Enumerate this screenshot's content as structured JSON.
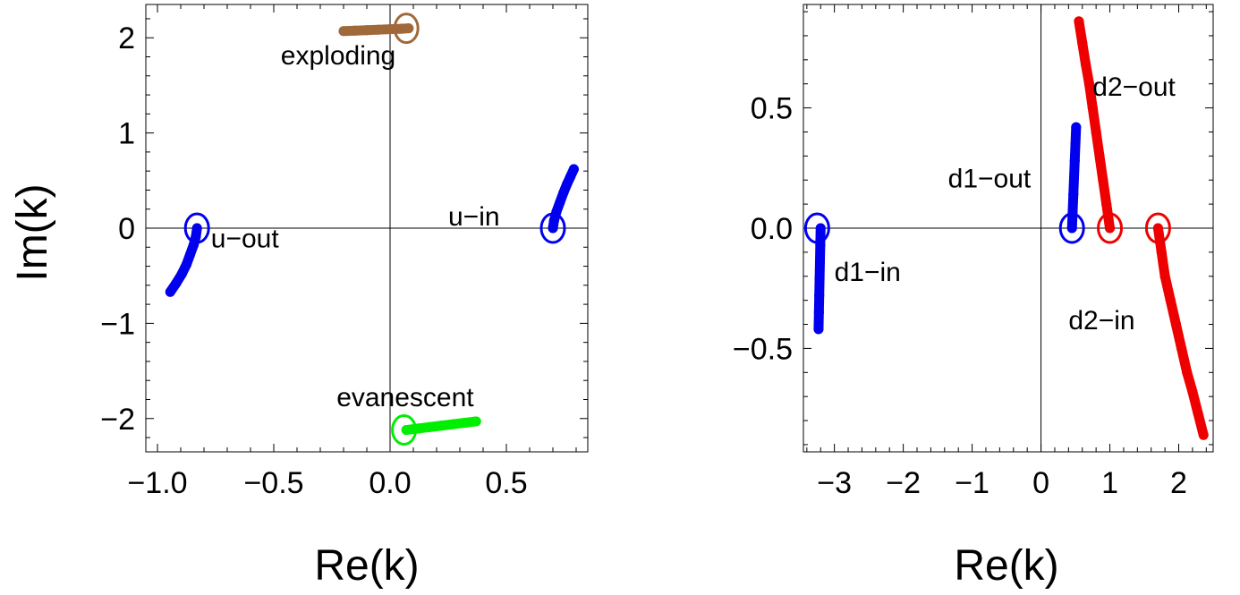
{
  "chart_data": [
    {
      "type": "scatter",
      "xlabel": "Re(k)",
      "ylabel": "Im(k)",
      "xlim": [
        -1.05,
        0.85
      ],
      "ylim": [
        -2.35,
        2.35
      ],
      "xticks": [
        -1.0,
        -0.5,
        0.0,
        0.5
      ],
      "xtick_labels": [
        "−1.0",
        "−0.5",
        "0.0",
        "0.5"
      ],
      "yticks": [
        -2,
        -1,
        0,
        1,
        2
      ],
      "ytick_labels": [
        "−2",
        "−1",
        "0",
        "1",
        "2"
      ],
      "grid": false,
      "series": [
        {
          "name": "exploding",
          "color": "#a0693a",
          "marker": {
            "x": 0.07,
            "y": 2.1
          },
          "x": [
            -0.2,
            -0.15,
            -0.1,
            -0.05,
            0.0,
            0.05,
            0.08
          ],
          "y": [
            2.07,
            2.075,
            2.08,
            2.085,
            2.09,
            2.095,
            2.1
          ]
        },
        {
          "name": "u−in",
          "color": "#0000ee",
          "marker": {
            "x": 0.7,
            "y": 0.0
          },
          "x": [
            0.7,
            0.705,
            0.715,
            0.73,
            0.745,
            0.76,
            0.775,
            0.79
          ],
          "y": [
            0.0,
            0.08,
            0.17,
            0.27,
            0.37,
            0.46,
            0.54,
            0.62
          ]
        },
        {
          "name": "u−out",
          "color": "#0000ee",
          "marker": {
            "x": -0.83,
            "y": 0.0
          },
          "x": [
            -0.83,
            -0.835,
            -0.845,
            -0.86,
            -0.875,
            -0.895,
            -0.92,
            -0.945
          ],
          "y": [
            0.0,
            -0.09,
            -0.18,
            -0.28,
            -0.38,
            -0.48,
            -0.58,
            -0.67
          ]
        },
        {
          "name": "evanescent",
          "color": "#00ee00",
          "marker": {
            "x": 0.06,
            "y": -2.12
          },
          "x": [
            0.07,
            0.12,
            0.17,
            0.22,
            0.27,
            0.32,
            0.37
          ],
          "y": [
            -2.12,
            -2.105,
            -2.09,
            -2.075,
            -2.06,
            -2.045,
            -2.03
          ]
        }
      ],
      "annotations": [
        {
          "text": "exploding",
          "x": -0.47,
          "y": 1.72
        },
        {
          "text": "u−in",
          "x": 0.25,
          "y": 0.03
        },
        {
          "text": "u−out",
          "x": -0.77,
          "y": -0.2
        },
        {
          "text": "evanescent",
          "x": -0.23,
          "y": -1.87
        }
      ]
    },
    {
      "type": "scatter",
      "xlabel": "Re(k)",
      "ylabel": "",
      "xlim": [
        -3.45,
        2.5
      ],
      "ylim": [
        -0.93,
        0.93
      ],
      "xticks": [
        -3,
        -2,
        -1,
        0,
        1,
        2
      ],
      "xtick_labels": [
        "−3",
        "−2",
        "−1",
        "0",
        "1",
        "2"
      ],
      "yticks": [
        -0.5,
        0.0,
        0.5
      ],
      "ytick_labels": [
        "−0.5",
        "0.0",
        "0.5"
      ],
      "grid": false,
      "series": [
        {
          "name": "d1−in",
          "color": "#0000ee",
          "marker": {
            "x": -3.25,
            "y": 0.0
          },
          "x": [
            -3.2,
            -3.205,
            -3.21,
            -3.215,
            -3.22,
            -3.225,
            -3.23
          ],
          "y": [
            0.0,
            -0.07,
            -0.14,
            -0.21,
            -0.28,
            -0.35,
            -0.42
          ]
        },
        {
          "name": "d1−out",
          "color": "#0000ee",
          "marker": {
            "x": 0.45,
            "y": 0.0
          },
          "x": [
            0.45,
            0.46,
            0.47,
            0.48,
            0.49,
            0.5,
            0.51
          ],
          "y": [
            0.0,
            0.07,
            0.14,
            0.21,
            0.28,
            0.35,
            0.42
          ]
        },
        {
          "name": "d2−out",
          "color": "#ee0000",
          "marker": {
            "x": 1.0,
            "y": 0.0
          },
          "x": [
            1.0,
            0.95,
            0.9,
            0.85,
            0.8,
            0.75,
            0.7,
            0.65,
            0.6,
            0.55
          ],
          "y": [
            0.0,
            0.1,
            0.2,
            0.3,
            0.4,
            0.5,
            0.6,
            0.68,
            0.77,
            0.86
          ]
        },
        {
          "name": "d2−in",
          "color": "#ee0000",
          "marker": {
            "x": 1.7,
            "y": 0.0
          },
          "x": [
            1.7,
            1.75,
            1.8,
            1.88,
            1.96,
            2.04,
            2.12,
            2.2,
            2.28,
            2.36
          ],
          "y": [
            0.0,
            -0.1,
            -0.2,
            -0.3,
            -0.4,
            -0.5,
            -0.6,
            -0.68,
            -0.77,
            -0.86
          ]
        }
      ],
      "annotations": [
        {
          "text": "d2−out",
          "x": 0.75,
          "y": 0.55
        },
        {
          "text": "d1−out",
          "x": -1.35,
          "y": 0.17
        },
        {
          "text": "d1−in",
          "x": -3.0,
          "y": -0.22
        },
        {
          "text": "d2−in",
          "x": 0.4,
          "y": -0.42
        }
      ]
    }
  ]
}
